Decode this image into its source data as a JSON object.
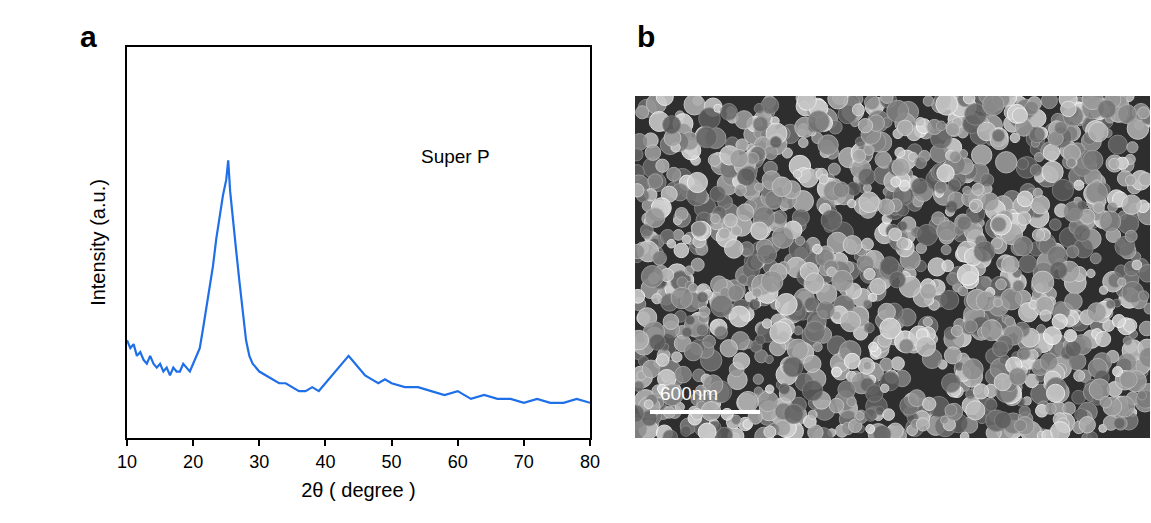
{
  "chart_data": {
    "type": "line",
    "panel_label": "a",
    "x_label": "2θ ( degree )",
    "y_label": "Intensity (a.u.)",
    "annotations": [
      {
        "text": "Super P",
        "x": 59.6,
        "y": 72
      }
    ],
    "color": "#1f6fe8",
    "x": [
      10,
      10.5,
      11,
      11.5,
      12,
      12.5,
      13,
      13.5,
      14,
      14.5,
      15,
      15.5,
      16,
      16.5,
      17,
      17.5,
      18,
      18.5,
      19,
      19.5,
      20,
      20.5,
      21,
      21.5,
      22,
      22.5,
      23,
      23.5,
      24,
      24.5,
      25,
      25.3,
      25.6,
      26,
      26.5,
      27,
      27.5,
      28,
      28.5,
      29,
      30,
      31,
      32,
      33,
      34,
      35,
      36,
      37,
      38,
      39,
      40,
      41,
      42,
      43,
      43.5,
      44,
      45,
      46,
      47,
      48,
      49,
      50,
      52,
      54,
      56,
      58,
      60,
      62,
      64,
      66,
      68,
      70,
      72,
      74,
      76,
      78,
      80
    ],
    "values": [
      25,
      23,
      24,
      21,
      22,
      20,
      19,
      21,
      19,
      18,
      19,
      17,
      18,
      16,
      18,
      17,
      17,
      19,
      18,
      17,
      19,
      21,
      23,
      28,
      33,
      38,
      44,
      51,
      57,
      62,
      66,
      71,
      63,
      57,
      48,
      40,
      32,
      25,
      21,
      19,
      17,
      16,
      15,
      14,
      14,
      13,
      12,
      12,
      13,
      12,
      14,
      16,
      18,
      20,
      21,
      20,
      18,
      16,
      15,
      14,
      15,
      14,
      13,
      13,
      12,
      11,
      12,
      10,
      11,
      10,
      10,
      9,
      10,
      9,
      9,
      10,
      9
    ],
    "xlim": [
      10,
      80
    ],
    "xticks": [
      10,
      20,
      30,
      40,
      50,
      60,
      70,
      80
    ],
    "ylim": [
      0,
      100
    ],
    "tick_labels": "x",
    "grid": false
  },
  "image_panel": {
    "panel_label": "b",
    "scale_bar_label": "600nm"
  }
}
